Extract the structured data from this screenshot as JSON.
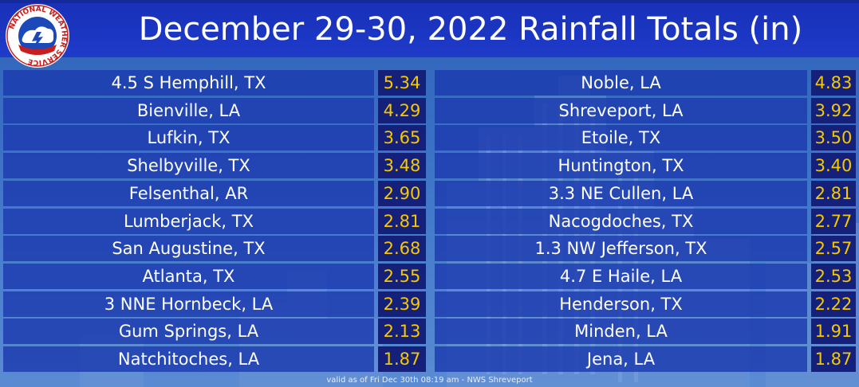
{
  "header": {
    "title": "December 29-30, 2022 Rainfall Totals (in)",
    "logo_text": "NATIONAL WEATHER SERVICE"
  },
  "rainfall": {
    "left": [
      {
        "location": "4.5 S Hemphill, TX",
        "value": "5.34"
      },
      {
        "location": "Bienville, LA",
        "value": "4.29"
      },
      {
        "location": "Lufkin, TX",
        "value": "3.65"
      },
      {
        "location": "Shelbyville, TX",
        "value": "3.48"
      },
      {
        "location": "Felsenthal, AR",
        "value": "2.90"
      },
      {
        "location": "Lumberjack, TX",
        "value": "2.81"
      },
      {
        "location": "San Augustine, TX",
        "value": "2.68"
      },
      {
        "location": "Atlanta, TX",
        "value": "2.55"
      },
      {
        "location": "3 NNE Hornbeck, LA",
        "value": "2.39"
      },
      {
        "location": "Gum Springs, LA",
        "value": "2.13"
      },
      {
        "location": "Natchitoches, LA",
        "value": "1.87"
      }
    ],
    "right": [
      {
        "location": "Noble, LA",
        "value": "4.83"
      },
      {
        "location": "Shreveport, LA",
        "value": "3.92"
      },
      {
        "location": "Etoile, TX",
        "value": "3.50"
      },
      {
        "location": "Huntington, TX",
        "value": "3.40"
      },
      {
        "location": "3.3 NE Cullen, LA",
        "value": "2.81"
      },
      {
        "location": "Nacogdoches, TX",
        "value": "2.77"
      },
      {
        "location": "1.3 NW Jefferson, TX",
        "value": "2.57"
      },
      {
        "location": "4.7 E Haile, LA",
        "value": "2.53"
      },
      {
        "location": "Henderson, TX",
        "value": "2.22"
      },
      {
        "location": "Minden, LA",
        "value": "1.91"
      },
      {
        "location": "Jena, LA",
        "value": "1.87"
      }
    ]
  },
  "footer": {
    "note": "valid as of Fri Dec 30th 08:19 am - NWS Shreveport"
  },
  "colors": {
    "header_bg": "#1b36c2",
    "name_cell_bg": "#1c3aaf",
    "value_cell_bg": "#14207a",
    "value_text": "#f5c800",
    "name_text": "#ffffff"
  }
}
